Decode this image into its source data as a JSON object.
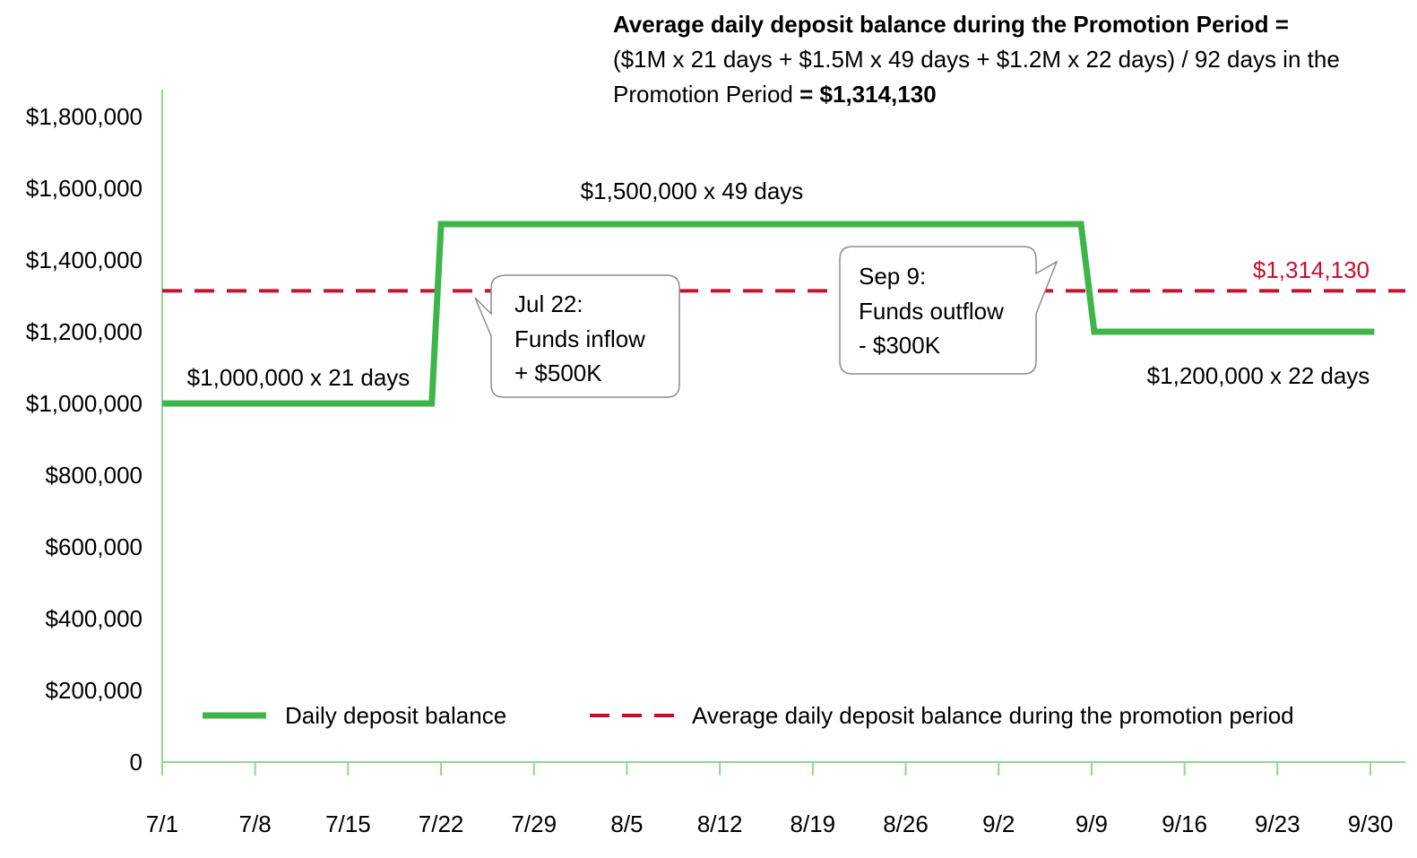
{
  "formula": {
    "title": "Average daily deposit balance during the Promotion Period =",
    "body": "($1M x 21 days + $1.5M x 49 days + $1.2M x 22 days) / 92 days in the Promotion Period",
    "equals": " = ",
    "result": "$1,314,130"
  },
  "callouts": {
    "inflow": {
      "line1": "Jul 22:",
      "line2": "Funds inflow",
      "line3": "+ $500K"
    },
    "outflow": {
      "line1": "Sep 9:",
      "line2": "Funds outflow",
      "line3": "- $300K"
    }
  },
  "segment_labels": {
    "first": "$1,000,000 x 21 days",
    "second": "$1,500,000 x 49 days",
    "third": "$1,200,000 x 22 days"
  },
  "average_label": "$1,314,130",
  "colors": {
    "balance": "#3DB54A",
    "average": "#C8102E",
    "axis": "#8DD98F"
  },
  "chart_data": {
    "type": "line",
    "x_tick_labels": [
      "7/1",
      "7/8",
      "7/15",
      "7/22",
      "7/29",
      "8/5",
      "8/12",
      "8/19",
      "8/26",
      "9/2",
      "9/9",
      "9/16",
      "9/23",
      "9/30"
    ],
    "x_tick_days": [
      0,
      7,
      14,
      21,
      28,
      35,
      42,
      49,
      56,
      63,
      70,
      77,
      84,
      91
    ],
    "y_tick_labels": [
      "0",
      "$200,000",
      "$400,000",
      "$600,000",
      "$800,000",
      "$1,000,000",
      "$1,200,000",
      "$1,400,000",
      "$1,600,000",
      "$1,800,000"
    ],
    "ylim": [
      0,
      1800000
    ],
    "series": [
      {
        "name": "Daily deposit balance",
        "points": [
          {
            "day": 0,
            "value": 1000000
          },
          {
            "day": 20.3,
            "value": 1000000
          },
          {
            "day": 21,
            "value": 1500000
          },
          {
            "day": 69.2,
            "value": 1500000
          },
          {
            "day": 70.2,
            "value": 1200000
          },
          {
            "day": 91.3,
            "value": 1200000
          }
        ]
      },
      {
        "name": "Average daily deposit balance during the promotion period",
        "style": "dashed",
        "value": 1314130
      }
    ],
    "legend_position": "bottom"
  }
}
